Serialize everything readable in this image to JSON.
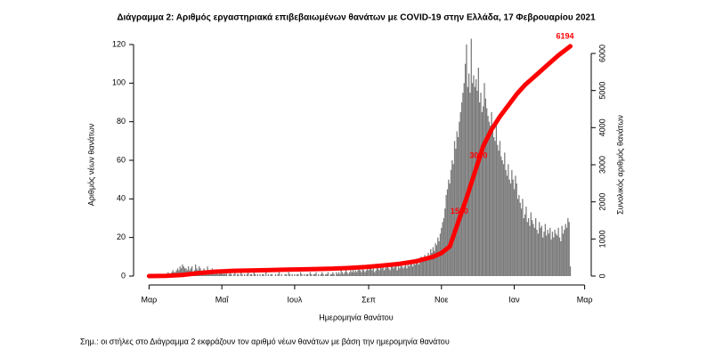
{
  "chart_data": {
    "type": "bar",
    "title": "Διάγραμμα 2: Αριθμός εργαστηριακά επιβεβαιωμένων θανάτων με COVID-19 στην Ελλάδα, 17 Φεβρουαρίου 2021",
    "x_label": "Ημερομηνία θανάτου",
    "y_label": "Αριθμός νέων θανάτων",
    "y2_label": "Συνολικός αριθμός θανάτων",
    "note": "Σημ.: οι στήλες στο Διάγραμμα 2 εκφράζουν τον αριθμό νέων θανάτων με βάση την ημερομηνία θανάτου",
    "xlim": [
      -10,
      372
    ],
    "xticks": [
      {
        "value": 0,
        "label": "Μαρ"
      },
      {
        "value": 61,
        "label": "Μαΐ"
      },
      {
        "value": 122,
        "label": "Ιουλ"
      },
      {
        "value": 184,
        "label": "Σεπ"
      },
      {
        "value": 245,
        "label": "Νοε"
      },
      {
        "value": 306,
        "label": "Ιαν"
      },
      {
        "value": 365,
        "label": "Μαρ"
      }
    ],
    "ylim": [
      0,
      120
    ],
    "yticks": [
      0,
      20,
      40,
      60,
      80,
      100,
      120
    ],
    "y2lim": [
      0,
      6000
    ],
    "y2ticks": [
      0,
      1000,
      2000,
      3000,
      4000,
      5000,
      6000
    ],
    "series": [
      {
        "type": "bar",
        "color": "#7a7a7a",
        "x": [
          0,
          1,
          2,
          3,
          4,
          5,
          6,
          7,
          8,
          9,
          10,
          11,
          12,
          13,
          14,
          15,
          16,
          17,
          18,
          19,
          20,
          21,
          22,
          23,
          24,
          25,
          26,
          27,
          28,
          29,
          30,
          31,
          32,
          33,
          34,
          35,
          36,
          37,
          38,
          39,
          40,
          41,
          42,
          43,
          44,
          45,
          46,
          47,
          48,
          49,
          50,
          51,
          52,
          53,
          54,
          55,
          56,
          57,
          58,
          59,
          60,
          61,
          62,
          63,
          64,
          65,
          66,
          67,
          68,
          69,
          70,
          71,
          72,
          73,
          74,
          75,
          76,
          77,
          78,
          79,
          80,
          81,
          82,
          83,
          84,
          85,
          86,
          87,
          88,
          89,
          90,
          91,
          92,
          93,
          94,
          95,
          96,
          97,
          98,
          99,
          100,
          101,
          102,
          103,
          104,
          105,
          106,
          107,
          108,
          109,
          110,
          111,
          112,
          113,
          114,
          115,
          116,
          117,
          118,
          119,
          120,
          121,
          122,
          123,
          124,
          125,
          126,
          127,
          128,
          129,
          130,
          131,
          132,
          133,
          134,
          135,
          136,
          137,
          138,
          139,
          140,
          141,
          142,
          143,
          144,
          145,
          146,
          147,
          148,
          149,
          150,
          151,
          152,
          153,
          154,
          155,
          156,
          157,
          158,
          159,
          160,
          161,
          162,
          163,
          164,
          165,
          166,
          167,
          168,
          169,
          170,
          171,
          172,
          173,
          174,
          175,
          176,
          177,
          178,
          179,
          180,
          181,
          182,
          183,
          184,
          185,
          186,
          187,
          188,
          189,
          190,
          191,
          192,
          193,
          194,
          195,
          196,
          197,
          198,
          199,
          200,
          201,
          202,
          203,
          204,
          205,
          206,
          207,
          208,
          209,
          210,
          211,
          212,
          213,
          214,
          215,
          216,
          217,
          218,
          219,
          220,
          221,
          222,
          223,
          224,
          225,
          226,
          227,
          228,
          229,
          230,
          231,
          232,
          233,
          234,
          235,
          236,
          237,
          238,
          239,
          240,
          241,
          242,
          243,
          244,
          245,
          246,
          247,
          248,
          249,
          250,
          251,
          252,
          253,
          254,
          255,
          256,
          257,
          258,
          259,
          260,
          261,
          262,
          263,
          264,
          265,
          266,
          267,
          268,
          269,
          270,
          271,
          272,
          273,
          274,
          275,
          276,
          277,
          278,
          279,
          280,
          281,
          282,
          283,
          284,
          285,
          286,
          287,
          288,
          289,
          290,
          291,
          292,
          293,
          294,
          295,
          296,
          297,
          298,
          299,
          300,
          301,
          302,
          303,
          304,
          305,
          306,
          307,
          308,
          309,
          310,
          311,
          312,
          313,
          314,
          315,
          316,
          317,
          318,
          319,
          320,
          321,
          322,
          323,
          324,
          325,
          326,
          327,
          328,
          329,
          330,
          331,
          332,
          333,
          334,
          335,
          336,
          337,
          338,
          339,
          340,
          341,
          342,
          343,
          344,
          345,
          346,
          347,
          348,
          349,
          350,
          351,
          352,
          353
        ],
        "values": [
          0,
          0,
          0,
          0,
          0,
          0,
          0,
          0,
          0,
          0,
          1,
          0,
          1,
          1,
          0,
          1,
          2,
          1,
          1,
          2,
          3,
          2,
          2,
          3,
          4,
          3,
          5,
          4,
          6,
          5,
          4,
          4,
          3,
          5,
          3,
          4,
          5,
          2,
          3,
          6,
          4,
          3,
          5,
          4,
          2,
          3,
          4,
          3,
          2,
          5,
          3,
          2,
          3,
          4,
          2,
          1,
          3,
          2,
          1,
          2,
          3,
          2,
          1,
          3,
          1,
          2,
          0,
          1,
          2,
          1,
          0,
          1,
          2,
          0,
          1,
          1,
          0,
          2,
          1,
          0,
          1,
          0,
          1,
          2,
          0,
          1,
          1,
          0,
          2,
          1,
          0,
          1,
          0,
          1,
          0,
          1,
          1,
          0,
          2,
          0,
          1,
          0,
          1,
          1,
          0,
          0,
          1,
          0,
          1,
          2,
          0,
          1,
          0,
          0,
          1,
          1,
          0,
          2,
          1,
          0,
          1,
          0,
          1,
          0,
          1,
          1,
          0,
          2,
          1,
          0,
          1,
          0,
          1,
          1,
          0,
          2,
          1,
          0,
          1,
          1,
          2,
          0,
          1,
          0,
          1,
          2,
          1,
          0,
          1,
          1,
          2,
          0,
          1,
          1,
          2,
          1,
          0,
          2,
          1,
          2,
          1,
          3,
          2,
          1,
          2,
          3,
          2,
          1,
          2,
          3,
          2,
          4,
          2,
          3,
          2,
          3,
          4,
          3,
          2,
          4,
          3,
          2,
          3,
          4,
          3,
          4,
          5,
          3,
          4,
          2,
          3,
          5,
          4,
          3,
          6,
          4,
          5,
          3,
          4,
          5,
          6,
          4,
          3,
          5,
          7,
          4,
          5,
          6,
          3,
          5,
          4,
          6,
          5,
          4,
          5,
          6,
          4,
          7,
          5,
          6,
          8,
          5,
          7,
          6,
          9,
          8,
          6,
          7,
          10,
          9,
          8,
          11,
          9,
          10,
          12,
          10,
          14,
          12,
          15,
          13,
          17,
          16,
          20,
          18,
          22,
          25,
          28,
          30,
          35,
          42,
          45,
          50,
          48,
          55,
          60,
          58,
          70,
          66,
          75,
          72,
          80,
          85,
          90,
          95,
          100,
          110,
          120,
          98,
          105,
          95,
          123,
          100,
          104,
          98,
          102,
          96,
          108,
          90,
          95,
          85,
          88,
          100,
          92,
          87,
          83,
          80,
          78,
          85,
          75,
          72,
          70,
          78,
          68,
          65,
          70,
          62,
          60,
          58,
          64,
          55,
          52,
          58,
          50,
          48,
          55,
          50,
          45,
          52,
          48,
          40,
          42,
          38,
          35,
          40,
          30,
          32,
          36,
          28,
          30,
          26,
          33,
          29,
          27,
          25,
          30,
          24,
          22,
          28,
          25,
          26,
          20,
          23,
          27,
          21,
          24,
          22,
          25,
          19,
          23,
          20,
          24,
          22,
          21,
          25,
          20,
          18,
          26,
          22,
          24,
          27,
          25,
          30,
          28,
          5
        ]
      },
      {
        "type": "line",
        "axis": "y2",
        "color": "#ff0000",
        "x": [
          0,
          14,
          28,
          42,
          56,
          70,
          84,
          98,
          112,
          126,
          140,
          154,
          168,
          182,
          196,
          210,
          224,
          238,
          245,
          252,
          259,
          266,
          273,
          280,
          287,
          294,
          301,
          308,
          315,
          322,
          329,
          336,
          343,
          353
        ],
        "values": [
          0,
          5,
          30,
          80,
          120,
          140,
          150,
          160,
          170,
          180,
          190,
          200,
          220,
          245,
          285,
          330,
          400,
          520,
          620,
          800,
          1450,
          2100,
          2800,
          3500,
          3950,
          4300,
          4600,
          4900,
          5150,
          5350,
          5550,
          5750,
          5950,
          6194
        ]
      }
    ],
    "annotations": [
      {
        "x": 260,
        "y": 1500
      },
      {
        "x": 276,
        "y": 3000
      }
    ]
  }
}
